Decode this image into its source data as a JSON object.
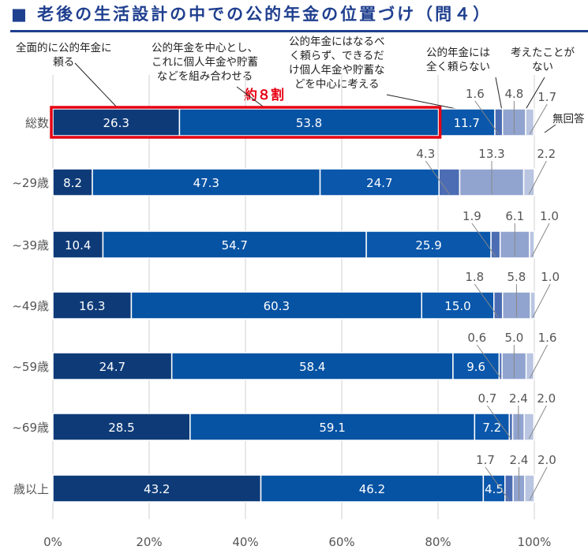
{
  "title": "■ 老後の生活設計の中での公的年金の位置づけ（問４）",
  "emphasis_label": "約８割",
  "colors": {
    "title": "#1f3f8f",
    "highlight_box": "#e60012",
    "segments": [
      "#0e3b78",
      "#0652a3",
      "#0a57ab",
      "#4c6db3",
      "#91a4cf",
      "#b9c5e1"
    ]
  },
  "chart_data": {
    "type": "bar",
    "orientation": "horizontal-stacked-100",
    "title": "老後の生活設計の中での公的年金の位置づけ（問４）",
    "xlim": [
      0,
      100
    ],
    "x_ticks": [
      "0%",
      "20%",
      "40%",
      "60%",
      "80%",
      "100%"
    ],
    "grid": true,
    "series": [
      {
        "name": "全面的に公的年金に\n頼る"
      },
      {
        "name": "公的年金を中心とし、\nこれに個人年金や貯蓄\nなどを組み合わせる"
      },
      {
        "name": "公的年金にはなるべ\nく頼らず、できるだ\nけ個人年金や貯蓄な\nどを中心に考える"
      },
      {
        "name": "公的年金には\n全く頼らない"
      },
      {
        "name": "考えたことが\nない"
      },
      {
        "name": "無回答"
      }
    ],
    "categories": [
      "総数",
      "~29歳",
      "~39歳",
      "~49歳",
      "~59歳",
      "~69歳",
      "歳以上"
    ],
    "values": [
      [
        26.3,
        53.8,
        11.7,
        1.6,
        4.8,
        1.7
      ],
      [
        8.2,
        47.3,
        24.7,
        4.3,
        13.3,
        2.2
      ],
      [
        10.4,
        54.7,
        25.9,
        1.9,
        6.1,
        1.0
      ],
      [
        16.3,
        60.3,
        15.0,
        1.8,
        5.8,
        1.0
      ],
      [
        24.7,
        58.4,
        9.6,
        0.6,
        5.0,
        1.6
      ],
      [
        28.5,
        59.1,
        7.2,
        0.7,
        2.4,
        2.0
      ],
      [
        43.2,
        46.2,
        4.5,
        1.7,
        2.4,
        2.0
      ]
    ],
    "value_labels": [
      [
        "26.3",
        "53.8",
        "11.7",
        "1.6",
        "4.8",
        "1.7"
      ],
      [
        "8.2",
        "47.3",
        "24.7",
        "4.3",
        "13.3",
        "2.2"
      ],
      [
        "10.4",
        "54.7",
        "25.9",
        "1.9",
        "6.1",
        "1.0"
      ],
      [
        "16.3",
        "60.3",
        "15.0",
        "1.8",
        "5.8",
        "1.0"
      ],
      [
        "24.7",
        "58.4",
        "9.6",
        "0.6",
        "5.0",
        "1.6"
      ],
      [
        "28.5",
        "59.1",
        "7.2",
        "0.7",
        "2.4",
        "2.0"
      ],
      [
        "43.2",
        "46.2",
        "4.5",
        "1.7",
        "2.4",
        "2.0"
      ]
    ]
  }
}
